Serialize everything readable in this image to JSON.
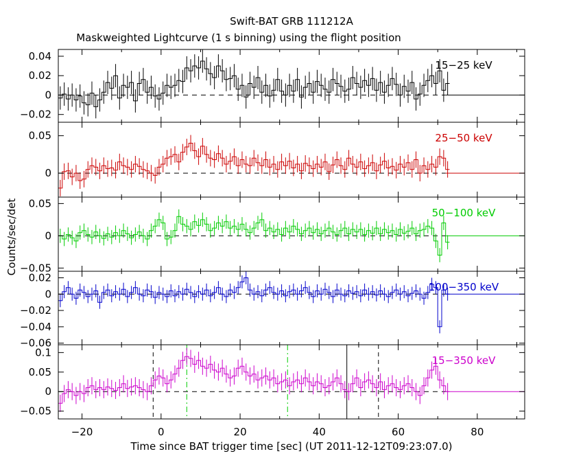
{
  "chart_data": {
    "type": "line",
    "title": "Swift-BAT GRB 111212A",
    "subtitle": "Maskweighted Lightcurve (1 s binning) using the flight position",
    "xlabel": "Time since BAT trigger time [sec] (UT 2011-12-12T09:23:07.0)",
    "ylabel": "Counts/sec/det",
    "xlim": [
      -26,
      92
    ],
    "x_ticks": [
      -20,
      0,
      20,
      40,
      60,
      80
    ],
    "x_tick_labels": [
      "−20",
      "0",
      "20",
      "40",
      "60",
      "80"
    ],
    "x_start": -26,
    "x_end": 72,
    "x_step": 1,
    "panels": [
      {
        "name": "15−25 keV",
        "color": "#000000",
        "ylim": [
          -0.028,
          0.047
        ],
        "yticks": [
          0.04,
          0.02,
          0,
          -0.02
        ],
        "ytick_labels": [
          "0.04",
          "0.02",
          "0",
          "−0.02"
        ],
        "error": 0.012,
        "values": [
          -0.003,
          0.001,
          -0.004,
          0.0,
          -0.005,
          -0.001,
          -0.008,
          -0.01,
          0.002,
          -0.012,
          -0.005,
          0.003,
          0.013,
          0.007,
          0.02,
          -0.003,
          0.01,
          0.008,
          0.013,
          -0.006,
          0.012,
          0.016,
          0.003,
          0.008,
          -0.001,
          -0.004,
          0.002,
          0.01,
          0.008,
          0.01,
          0.015,
          0.014,
          0.028,
          0.025,
          0.03,
          0.028,
          0.035,
          0.027,
          0.022,
          0.018,
          0.03,
          0.025,
          0.016,
          0.017,
          0.02,
          0.006,
          0.01,
          -0.002,
          0.012,
          0.008,
          0.018,
          0.003,
          0.01,
          -0.001,
          0.005,
          0.016,
          0.004,
          0.0,
          0.01,
          0.004,
          0.016,
          -0.002,
          0.008,
          0.012,
          0.003,
          0.014,
          0.01,
          0.006,
          0.003,
          0.016,
          0.012,
          0.009,
          0.004,
          0.006,
          0.018,
          0.012,
          0.008,
          0.015,
          0.01,
          0.017,
          0.005,
          0.013,
          0.003,
          0.01,
          0.017,
          0.011,
          0.0,
          0.009,
          0.004,
          0.013,
          -0.004,
          0.001,
          0.01,
          0.015,
          0.02,
          0.012,
          0.025,
          0.005,
          0.012
        ],
        "flat_after": 0.0
      },
      {
        "name": "25−50 keV",
        "color": "#cc0000",
        "ylim": [
          -0.032,
          0.068
        ],
        "yticks": [
          0.05,
          0
        ],
        "ytick_labels": [
          "0.05",
          "0"
        ],
        "error": 0.011,
        "values": [
          -0.02,
          0.002,
          0.003,
          -0.005,
          0.0,
          -0.01,
          -0.008,
          0.005,
          0.01,
          0.008,
          0.003,
          0.01,
          0.006,
          0.007,
          0.004,
          0.015,
          0.01,
          0.008,
          0.005,
          0.012,
          0.009,
          0.005,
          0.003,
          0.0,
          -0.003,
          0.008,
          0.012,
          0.02,
          0.022,
          0.025,
          0.015,
          0.028,
          0.035,
          0.04,
          0.03,
          0.022,
          0.036,
          0.025,
          0.02,
          0.018,
          0.026,
          0.02,
          0.012,
          0.016,
          0.022,
          0.01,
          0.018,
          0.012,
          0.01,
          0.02,
          0.014,
          0.01,
          0.018,
          0.008,
          0.012,
          0.005,
          0.015,
          0.01,
          0.016,
          0.007,
          0.012,
          0.003,
          0.013,
          0.01,
          0.006,
          0.012,
          0.008,
          0.015,
          0.002,
          0.011,
          0.018,
          0.01,
          0.005,
          0.02,
          0.012,
          0.008,
          0.015,
          0.006,
          0.01,
          0.014,
          0.003,
          0.011,
          0.016,
          0.007,
          0.009,
          0.004,
          0.012,
          0.008,
          0.014,
          0.005,
          0.018,
          0.0,
          0.01,
          0.005,
          0.012,
          0.008,
          0.022,
          0.02,
          0.005
        ],
        "flat_after": 0.0
      },
      {
        "name": "50−100 keV",
        "color": "#00cc00",
        "ylim": [
          -0.055,
          0.06
        ],
        "yticks": [
          0.05,
          0,
          -0.05
        ],
        "ytick_labels": [
          "0.05",
          "0",
          "−0.05"
        ],
        "error": 0.011,
        "values": [
          0.0,
          -0.005,
          0.002,
          -0.003,
          -0.008,
          0.005,
          0.008,
          0.002,
          -0.002,
          0.006,
          0.0,
          -0.004,
          0.003,
          -0.002,
          0.005,
          0.0,
          0.008,
          0.003,
          -0.003,
          0.002,
          0.006,
          0.0,
          -0.005,
          0.008,
          0.015,
          0.025,
          0.02,
          -0.005,
          -0.002,
          0.008,
          0.03,
          0.018,
          0.015,
          0.01,
          0.022,
          0.016,
          0.025,
          0.018,
          0.008,
          0.012,
          0.02,
          0.015,
          0.022,
          0.012,
          0.015,
          0.01,
          0.018,
          0.01,
          0.005,
          0.012,
          0.02,
          0.025,
          0.008,
          0.012,
          0.006,
          0.01,
          0.002,
          0.012,
          0.006,
          0.015,
          0.01,
          0.003,
          0.008,
          0.012,
          0.005,
          0.01,
          0.003,
          0.008,
          0.012,
          0.006,
          0.002,
          0.008,
          0.012,
          0.003,
          0.01,
          0.006,
          0.01,
          0.002,
          0.008,
          0.004,
          0.012,
          0.003,
          0.01,
          0.005,
          0.008,
          0.002,
          0.01,
          0.004,
          0.007,
          0.012,
          0.003,
          0.008,
          0.01,
          0.015,
          0.012,
          -0.008,
          -0.03,
          0.02,
          -0.01
        ],
        "flat_after": 0.0
      },
      {
        "name": "100−350 keV",
        "color": "#0000cc",
        "ylim": [
          -0.062,
          0.028
        ],
        "yticks": [
          0.02,
          0,
          -0.02,
          -0.04,
          -0.06
        ],
        "ytick_labels": [
          "0.02",
          "0",
          "−0.02",
          "−0.04",
          "−0.06"
        ],
        "error": 0.008,
        "values": [
          -0.008,
          0.003,
          0.008,
          0.0,
          -0.005,
          0.005,
          0.002,
          -0.003,
          0.0,
          0.004,
          -0.01,
          0.002,
          0.005,
          -0.002,
          0.003,
          0.0,
          0.006,
          -0.003,
          0.002,
          0.008,
          0.0,
          -0.002,
          0.005,
          0.003,
          -0.004,
          0.002,
          0.0,
          -0.003,
          0.004,
          -0.002,
          0.003,
          0.0,
          0.006,
          0.002,
          -0.003,
          0.003,
          0.0,
          0.005,
          -0.002,
          0.002,
          0.008,
          0.0,
          -0.003,
          0.005,
          0.002,
          0.008,
          0.015,
          0.02,
          0.005,
          0.0,
          0.003,
          -0.002,
          0.005,
          0.008,
          0.002,
          0.0,
          0.004,
          -0.002,
          0.003,
          0.005,
          0.0,
          0.004,
          0.008,
          0.002,
          -0.003,
          0.004,
          0.0,
          0.006,
          0.002,
          -0.003,
          0.005,
          0.0,
          -0.002,
          0.004,
          0.001,
          0.003,
          -0.002,
          0.005,
          0.0,
          0.003,
          -0.001,
          0.004,
          0.0,
          -0.003,
          0.002,
          0.005,
          0.0,
          0.003,
          -0.002,
          0.001,
          0.004,
          0.0,
          -0.005,
          0.002,
          0.012,
          0.008,
          -0.04,
          0.005,
          0.0
        ],
        "flat_after": 0.0
      },
      {
        "name": "15−350 keV",
        "color": "#cc00cc",
        "ylim": [
          -0.07,
          0.12
        ],
        "yticks": [
          0.1,
          0.05,
          0,
          -0.05
        ],
        "ytick_labels": [
          "0.1",
          "0.05",
          "0",
          "−0.05"
        ],
        "error": 0.022,
        "values": [
          -0.03,
          -0.005,
          0.005,
          0.0,
          -0.01,
          0.0,
          -0.005,
          0.01,
          0.015,
          0.005,
          0.01,
          0.005,
          0.012,
          0.008,
          0.003,
          0.01,
          0.02,
          0.008,
          0.012,
          0.015,
          0.01,
          0.005,
          0.0,
          0.015,
          0.03,
          0.04,
          0.035,
          0.02,
          0.03,
          0.045,
          0.06,
          0.08,
          0.09,
          0.085,
          0.07,
          0.08,
          0.065,
          0.06,
          0.07,
          0.055,
          0.05,
          0.06,
          0.045,
          0.035,
          0.04,
          0.06,
          0.065,
          0.05,
          0.04,
          0.045,
          0.03,
          0.035,
          0.04,
          0.03,
          0.035,
          0.02,
          0.025,
          0.03,
          0.015,
          0.025,
          0.03,
          0.02,
          0.035,
          0.025,
          0.015,
          0.025,
          0.02,
          0.01,
          0.015,
          0.025,
          0.035,
          0.02,
          0.005,
          0.0,
          0.02,
          0.035,
          0.01,
          0.025,
          0.03,
          0.02,
          0.01,
          0.025,
          0.005,
          0.015,
          0.02,
          0.01,
          0.005,
          0.015,
          0.02,
          0.01,
          0.0,
          -0.01,
          0.015,
          0.035,
          0.055,
          0.065,
          0.03,
          0.015,
          0.0
        ],
        "flat_after": 0.0,
        "vlines": [
          {
            "x": -2,
            "style": "dash",
            "color": "#000000"
          },
          {
            "x": 6.5,
            "style": "dashdot",
            "color": "#00cc00"
          },
          {
            "x": 32,
            "style": "dashdot",
            "color": "#00cc00"
          },
          {
            "x": 47,
            "style": "solid",
            "color": "#000000"
          },
          {
            "x": 55,
            "style": "dash",
            "color": "#000000"
          }
        ]
      }
    ]
  }
}
